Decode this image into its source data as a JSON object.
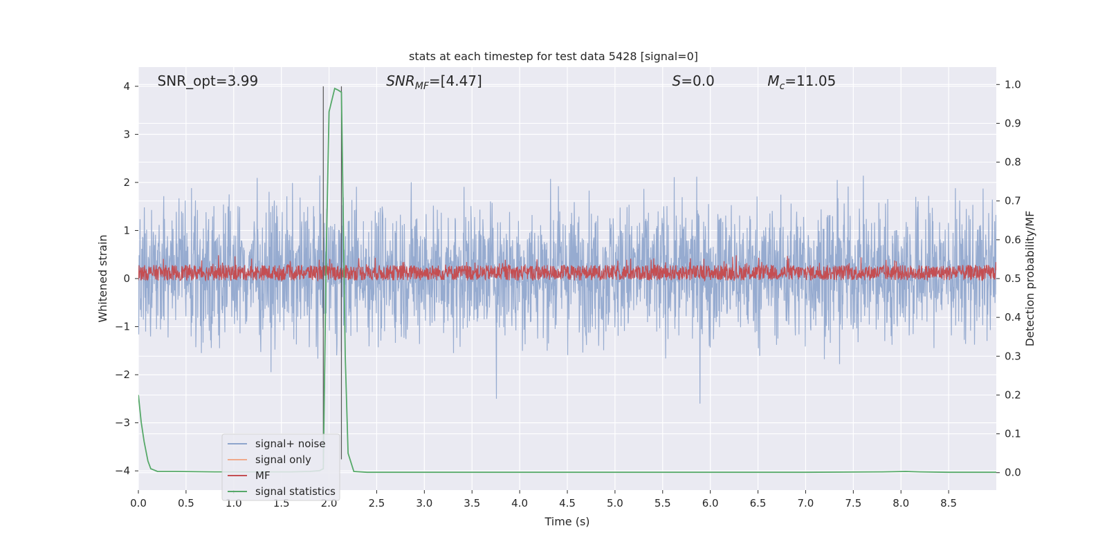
{
  "chart_data": {
    "type": "line",
    "title": "stats at each timestep for test data 5428 [signal=0]",
    "xlabel": "Time (s)",
    "ylabel_left": "Whitened strain",
    "ylabel_right": "Detection probability/MF",
    "xlim": [
      0,
      9.0
    ],
    "ylim_left": [
      -4.4,
      4.4
    ],
    "ylim_right": [
      -0.045,
      1.045
    ],
    "x_ticks": [
      "0.0",
      "0.5",
      "1.0",
      "1.5",
      "2.0",
      "2.5",
      "3.0",
      "3.5",
      "4.0",
      "4.5",
      "5.0",
      "5.5",
      "6.0",
      "6.5",
      "7.0",
      "7.5",
      "8.0",
      "8.5"
    ],
    "y_left_ticks": [
      "4",
      "3",
      "2",
      "1",
      "0",
      "−1",
      "−2",
      "−3",
      "−4"
    ],
    "y_right_ticks": [
      "1.0",
      "0.9",
      "0.8",
      "0.7",
      "0.6",
      "0.5",
      "0.4",
      "0.3",
      "0.2",
      "0.1",
      "0.0"
    ],
    "grid": true,
    "legend_position": "lower-left",
    "annotations": [
      {
        "base": "SNR_opt=3.99",
        "sub": "",
        "rest": "",
        "x": 0.2
      },
      {
        "base": "SNR",
        "sub": "MF",
        "rest": "=[4.47]",
        "x": 2.6,
        "italic": true
      },
      {
        "base": "S",
        "sub": "",
        "rest": "=0.0",
        "x": 5.6,
        "italic": true
      },
      {
        "base": "M",
        "sub": "c",
        "rest": "=11.05",
        "x": 6.6,
        "italic": true
      }
    ],
    "vlines": [
      1.94,
      2.13
    ],
    "series": [
      {
        "name": "signal+ noise",
        "color": "#8da4cc",
        "axis": "left",
        "summary": "dense noise between about -2.5 and +3, with spikes to 4.0 and -3.8"
      },
      {
        "name": "signal only",
        "color": "#f0a98a",
        "axis": "left",
        "summary": "not visible"
      },
      {
        "name": "MF",
        "color": "#c44e52",
        "axis": "right",
        "summary": "between 0.49 and 0.56 on the right axis"
      },
      {
        "name": "signal statistics",
        "color": "#55a868",
        "axis": "right",
        "x": [
          0.0,
          0.03,
          0.06,
          0.1,
          0.13,
          0.2,
          0.4,
          0.8,
          1.2,
          1.6,
          1.8,
          1.9,
          1.94,
          1.97,
          2.0,
          2.06,
          2.1,
          2.13,
          2.17,
          2.2,
          2.26,
          2.4,
          3.0,
          4.0,
          5.0,
          6.0,
          7.0,
          7.8,
          8.05,
          8.2,
          8.5,
          9.0
        ],
        "y": [
          0.2,
          0.13,
          0.08,
          0.03,
          0.01,
          0.003,
          0.003,
          0.002,
          0.002,
          0.002,
          0.003,
          0.005,
          0.01,
          0.55,
          0.93,
          0.99,
          0.985,
          0.98,
          0.3,
          0.05,
          0.003,
          0.001,
          0.001,
          0.001,
          0.001,
          0.001,
          0.001,
          0.002,
          0.003,
          0.002,
          0.001,
          0.001
        ]
      }
    ]
  }
}
